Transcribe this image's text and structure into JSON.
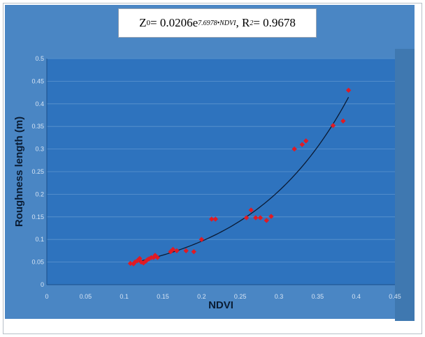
{
  "chart_data": {
    "type": "scatter",
    "equation": {
      "lhs_var": "Z",
      "lhs_sub": "0",
      "mid": " = 0.0206e",
      "exponent": "7.6978•NDVI",
      "r2_prefix": " , R",
      "r2_sup": "2",
      "r2_value": " = 0.9678"
    },
    "xlabel": "NDVI",
    "ylabel": "Roughness length (m)",
    "xlim": [
      0,
      0.45
    ],
    "ylim": [
      0,
      0.5
    ],
    "x_ticks": [
      "0",
      "0.05",
      "0.1",
      "0.15",
      "0.2",
      "0.25",
      "0.3",
      "0.35",
      "0.4",
      "0.45"
    ],
    "y_ticks": [
      "0",
      "0.05",
      "0.1",
      "0.15",
      "0.2",
      "0.25",
      "0.3",
      "0.35",
      "0.4",
      "0.45",
      "0.5"
    ],
    "trendline": {
      "type": "exponential",
      "a": 0.0206,
      "b": 7.6978,
      "x_range": [
        0.11,
        0.39
      ]
    },
    "points": [
      [
        0.108,
        0.047
      ],
      [
        0.112,
        0.046
      ],
      [
        0.114,
        0.05
      ],
      [
        0.117,
        0.053
      ],
      [
        0.12,
        0.058
      ],
      [
        0.122,
        0.05
      ],
      [
        0.125,
        0.048
      ],
      [
        0.128,
        0.052
      ],
      [
        0.13,
        0.055
      ],
      [
        0.132,
        0.057
      ],
      [
        0.135,
        0.06
      ],
      [
        0.138,
        0.06
      ],
      [
        0.14,
        0.065
      ],
      [
        0.143,
        0.06
      ],
      [
        0.16,
        0.073
      ],
      [
        0.163,
        0.078
      ],
      [
        0.168,
        0.075
      ],
      [
        0.18,
        0.075
      ],
      [
        0.19,
        0.073
      ],
      [
        0.2,
        0.1
      ],
      [
        0.213,
        0.145
      ],
      [
        0.218,
        0.145
      ],
      [
        0.258,
        0.148
      ],
      [
        0.264,
        0.165
      ],
      [
        0.27,
        0.148
      ],
      [
        0.276,
        0.148
      ],
      [
        0.284,
        0.142
      ],
      [
        0.29,
        0.151
      ],
      [
        0.32,
        0.3
      ],
      [
        0.33,
        0.31
      ],
      [
        0.335,
        0.318
      ],
      [
        0.37,
        0.352
      ],
      [
        0.383,
        0.362
      ],
      [
        0.39,
        0.43
      ]
    ],
    "grid": true,
    "legend": "none",
    "colors": {
      "outer_background": "#4a86c4",
      "plot_background": "#2e73be",
      "right_band": "#3f78b0",
      "points": "#e01b24",
      "trendline": "#0b1a33",
      "grid": "#5d95cf",
      "labels": "#0a1c33"
    }
  }
}
